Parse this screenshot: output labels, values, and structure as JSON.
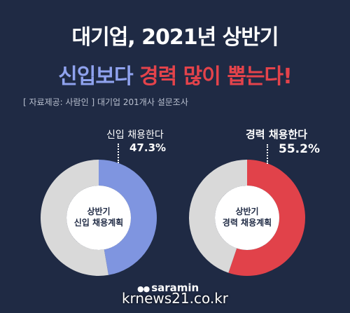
{
  "header": {
    "title_line1": "대기업, 2021년 상반기",
    "title_line2_part1": "신입보다",
    "title_line2_part2": "경력 많이 뽑는다!",
    "source_label": "[ 자료제공: 사람인 ]",
    "source_desc": "대기업 201개사 설문조사"
  },
  "chart_data": [
    {
      "type": "pie",
      "center_label_line1": "상반기",
      "center_label_line2": "신입 채용계획",
      "series_label": "신입 채용한다",
      "value_label": "47.3%",
      "values": [
        47.3,
        52.7
      ],
      "colors": [
        "#7f95e0",
        "#d9d9d9"
      ]
    },
    {
      "type": "pie",
      "center_label_line1": "상반기",
      "center_label_line2": "경력 채용계획",
      "series_label": "경력 채용한다",
      "value_label": "55.2%",
      "values": [
        55.2,
        44.8
      ],
      "colors": [
        "#e1424a",
        "#d9d9d9"
      ]
    }
  ],
  "footer": {
    "logo_text": "saramin",
    "watermark": "krnews21.co.kr"
  }
}
